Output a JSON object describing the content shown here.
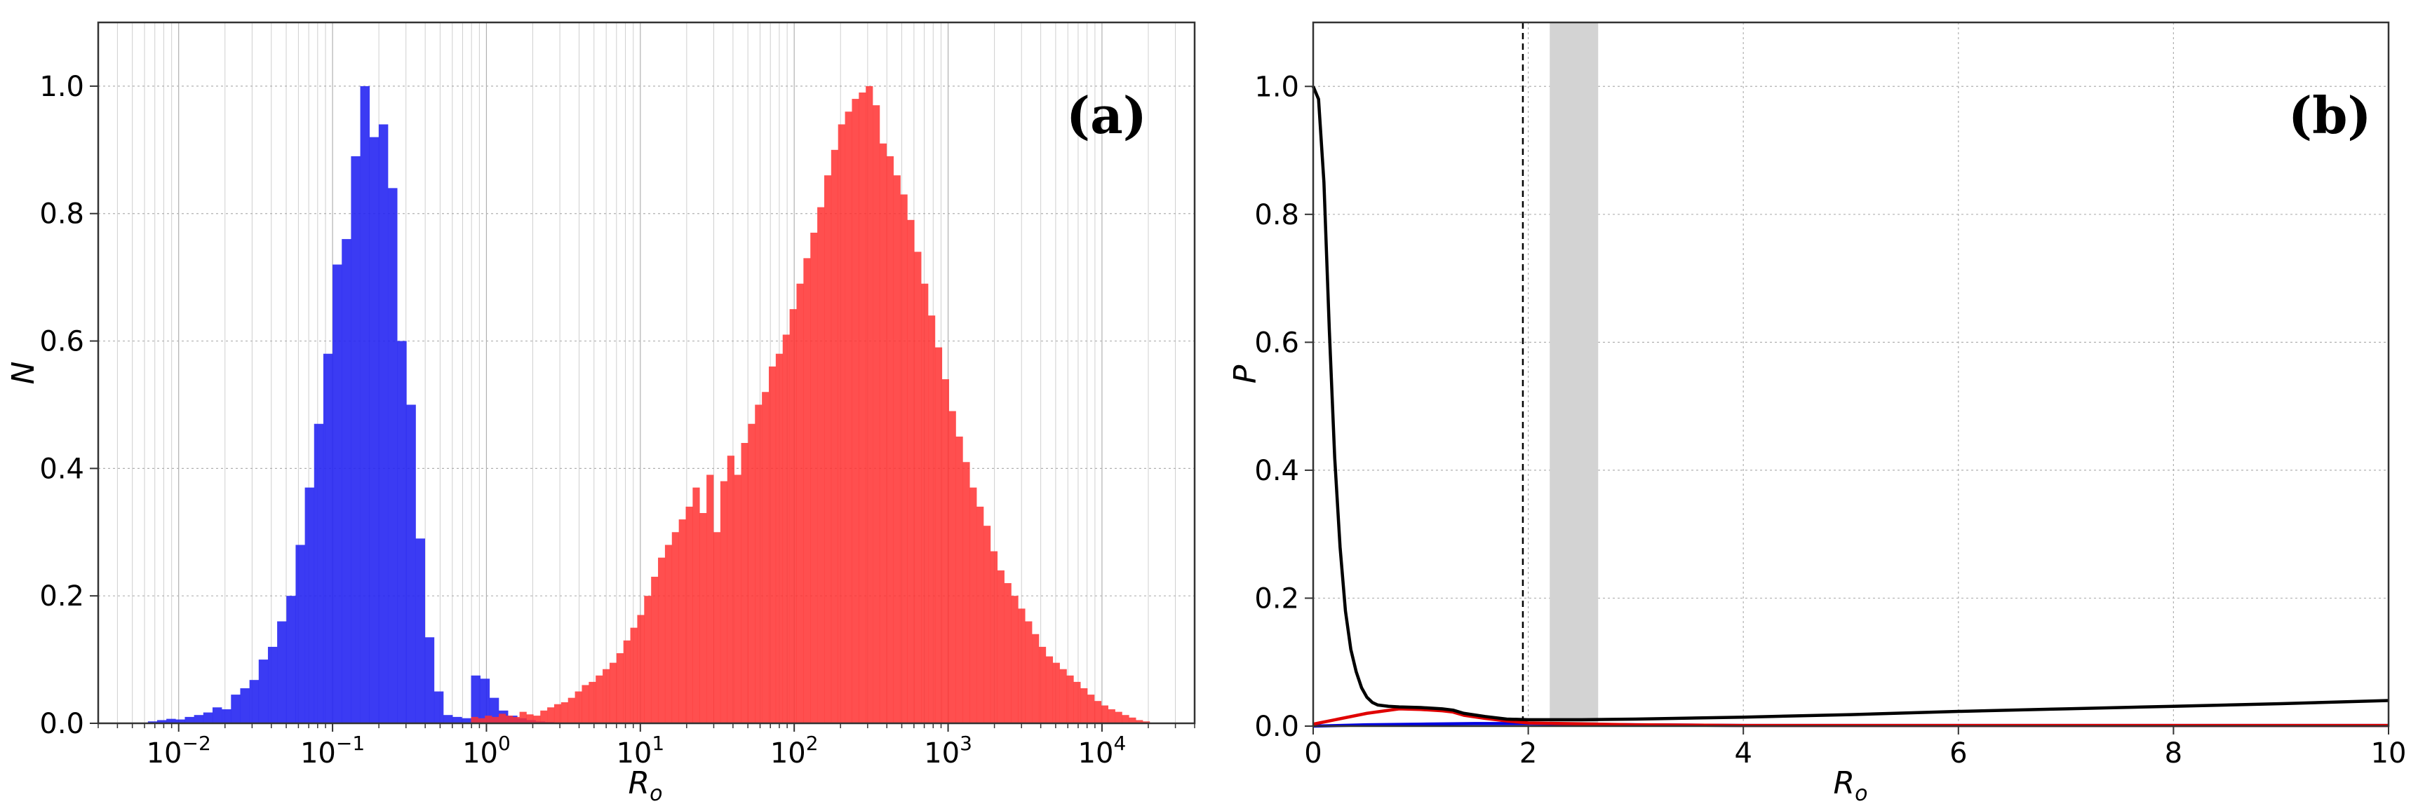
{
  "chart_data": [
    {
      "panel_label": "(a)",
      "type": "bar",
      "xlabel": "R_o",
      "ylabel": "N",
      "xscale": "log",
      "xlim": [
        0.003,
        40000
      ],
      "ylim": [
        0,
        1.1
      ],
      "x_ticks": [
        {
          "value": 0.01,
          "base": "10",
          "exp": "−2"
        },
        {
          "value": 0.1,
          "base": "10",
          "exp": "−1"
        },
        {
          "value": 1,
          "base": "10",
          "exp": "0"
        },
        {
          "value": 10,
          "base": "10",
          "exp": "1"
        },
        {
          "value": 100,
          "base": "10",
          "exp": "2"
        },
        {
          "value": 1000,
          "base": "10",
          "exp": "3"
        },
        {
          "value": 10000,
          "base": "10",
          "exp": "4"
        }
      ],
      "y_ticks": [
        "0.0",
        "0.2",
        "0.4",
        "0.6",
        "0.8",
        "1.0"
      ],
      "grid": true,
      "series": [
        {
          "color": "#2626f2",
          "log_bin_start": -2.2,
          "log_bin_width": 0.06,
          "values": [
            0.003,
            0.005,
            0.007,
            0.006,
            0.01,
            0.013,
            0.017,
            0.025,
            0.022,
            0.045,
            0.055,
            0.068,
            0.1,
            0.12,
            0.16,
            0.2,
            0.28,
            0.37,
            0.47,
            0.58,
            0.72,
            0.76,
            0.89,
            1.0,
            0.92,
            0.94,
            0.84,
            0.6,
            0.5,
            0.29,
            0.135,
            0.05,
            0.013,
            0.01,
            0.008,
            0.075,
            0.07,
            0.04,
            0.02,
            0.012,
            0.008,
            0.005,
            0.003,
            0.002
          ]
        },
        {
          "color": "#ff3030",
          "log_bin_start": -0.1,
          "log_bin_width": 0.045,
          "values": [
            0.01,
            0.008,
            0.012,
            0.01,
            0.015,
            0.012,
            0.01,
            0.018,
            0.014,
            0.012,
            0.02,
            0.025,
            0.03,
            0.033,
            0.04,
            0.05,
            0.06,
            0.065,
            0.075,
            0.085,
            0.095,
            0.11,
            0.13,
            0.15,
            0.17,
            0.2,
            0.23,
            0.26,
            0.28,
            0.3,
            0.32,
            0.34,
            0.37,
            0.33,
            0.39,
            0.3,
            0.38,
            0.42,
            0.39,
            0.44,
            0.47,
            0.5,
            0.52,
            0.56,
            0.58,
            0.61,
            0.65,
            0.69,
            0.73,
            0.77,
            0.81,
            0.86,
            0.9,
            0.94,
            0.96,
            0.98,
            0.99,
            1.0,
            0.97,
            0.91,
            0.89,
            0.86,
            0.83,
            0.79,
            0.74,
            0.69,
            0.64,
            0.59,
            0.54,
            0.49,
            0.45,
            0.41,
            0.37,
            0.34,
            0.31,
            0.27,
            0.24,
            0.22,
            0.2,
            0.18,
            0.16,
            0.14,
            0.12,
            0.105,
            0.095,
            0.085,
            0.075,
            0.065,
            0.055,
            0.045,
            0.035,
            0.028,
            0.022,
            0.018,
            0.013,
            0.009,
            0.005,
            0.003
          ]
        }
      ]
    },
    {
      "panel_label": "(b)",
      "type": "line",
      "xlabel": "R_o",
      "ylabel": "P",
      "xlim": [
        0,
        10
      ],
      "ylim": [
        0,
        1.1
      ],
      "x_ticks": [
        "0",
        "2",
        "4",
        "6",
        "8",
        "10"
      ],
      "y_ticks": [
        "0.0",
        "0.2",
        "0.4",
        "0.6",
        "0.8",
        "1.0"
      ],
      "grid": true,
      "vline": {
        "x": 1.95,
        "style": "dashed",
        "color": "#000000"
      },
      "shaded_band": {
        "x0": 2.2,
        "x1": 2.65,
        "color": "#d3d3d3"
      },
      "series": [
        {
          "color": "#000000",
          "x": [
            0,
            0.05,
            0.1,
            0.15,
            0.2,
            0.25,
            0.3,
            0.35,
            0.4,
            0.45,
            0.5,
            0.55,
            0.6,
            0.7,
            0.8,
            1.0,
            1.2,
            1.3,
            1.4,
            1.6,
            1.8,
            2.0,
            2.5,
            3,
            4,
            5,
            6,
            7,
            8,
            9,
            10
          ],
          "y": [
            1.0,
            0.98,
            0.85,
            0.62,
            0.42,
            0.28,
            0.18,
            0.12,
            0.085,
            0.06,
            0.045,
            0.037,
            0.033,
            0.031,
            0.03,
            0.029,
            0.027,
            0.025,
            0.02,
            0.015,
            0.011,
            0.01,
            0.01,
            0.011,
            0.014,
            0.018,
            0.023,
            0.027,
            0.031,
            0.035,
            0.04
          ]
        },
        {
          "color": "#e00000",
          "x": [
            0,
            0.5,
            0.8,
            1.0,
            1.2,
            1.3,
            1.4,
            1.6,
            1.8,
            2.0,
            3,
            4,
            6,
            8,
            10
          ],
          "y": [
            0.003,
            0.02,
            0.027,
            0.026,
            0.024,
            0.022,
            0.017,
            0.012,
            0.008,
            0.005,
            0.002,
            0.001,
            0.001,
            0.001,
            0.001
          ]
        },
        {
          "color": "#0000e0",
          "x": [
            0,
            0.5,
            1.0,
            1.5,
            2.0,
            2.5,
            3,
            4,
            6,
            8,
            10
          ],
          "y": [
            0.0,
            0.002,
            0.003,
            0.004,
            0.004,
            0.003,
            0.002,
            0.001,
            0.001,
            0.001,
            0.001
          ]
        }
      ]
    }
  ]
}
